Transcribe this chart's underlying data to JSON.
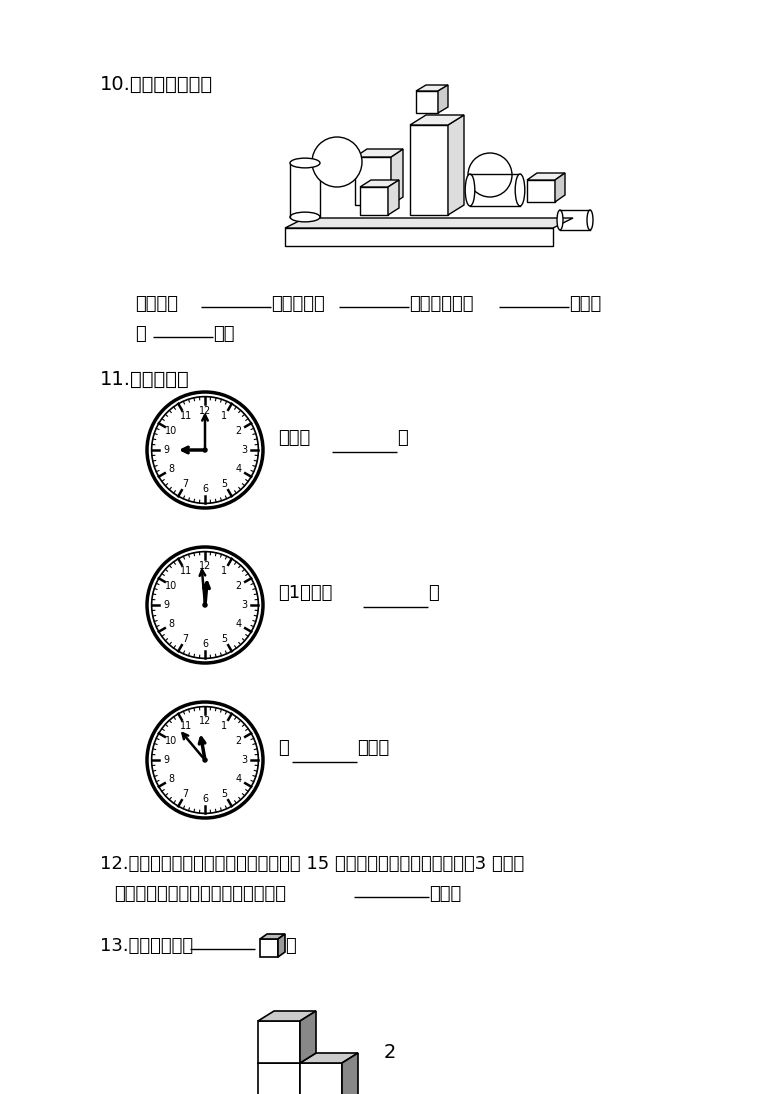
{
  "bg_color": "#ffffff",
  "text_color": "#000000",
  "page_number": "2",
  "q10_label": "10.　认立体图形。",
  "q10_ans1": "长方体有",
  "q10_ans2": "个；圆柱有",
  "q10_ans3": "个；正方体有",
  "q10_ans4": "个；球",
  "q10_ans5": "有",
  "q10_ans6": "个。",
  "q11_label": "11.　认时间。",
  "q11_clock1_label": "现在是",
  "q11_clock1_end": "。",
  "q11_clock2_label": "过1小时是",
  "q11_clock2_end": "。",
  "q11_clock3_pre": "快",
  "q11_clock3_mid": "时了。",
  "q12_label": "12.　小猴与猴妈妈去摘桃，猴妈妈摘下 15 个桃，当猴妈妈将自己的桃分3 个给小",
  "q12_line2_pre": "猴时，它俩的桃就一样多，小猴摘了",
  "q12_line2_end": "个桃。",
  "q13_label": "13.　下图一共有",
  "q13_end": "。",
  "font_cn": "SimHei"
}
